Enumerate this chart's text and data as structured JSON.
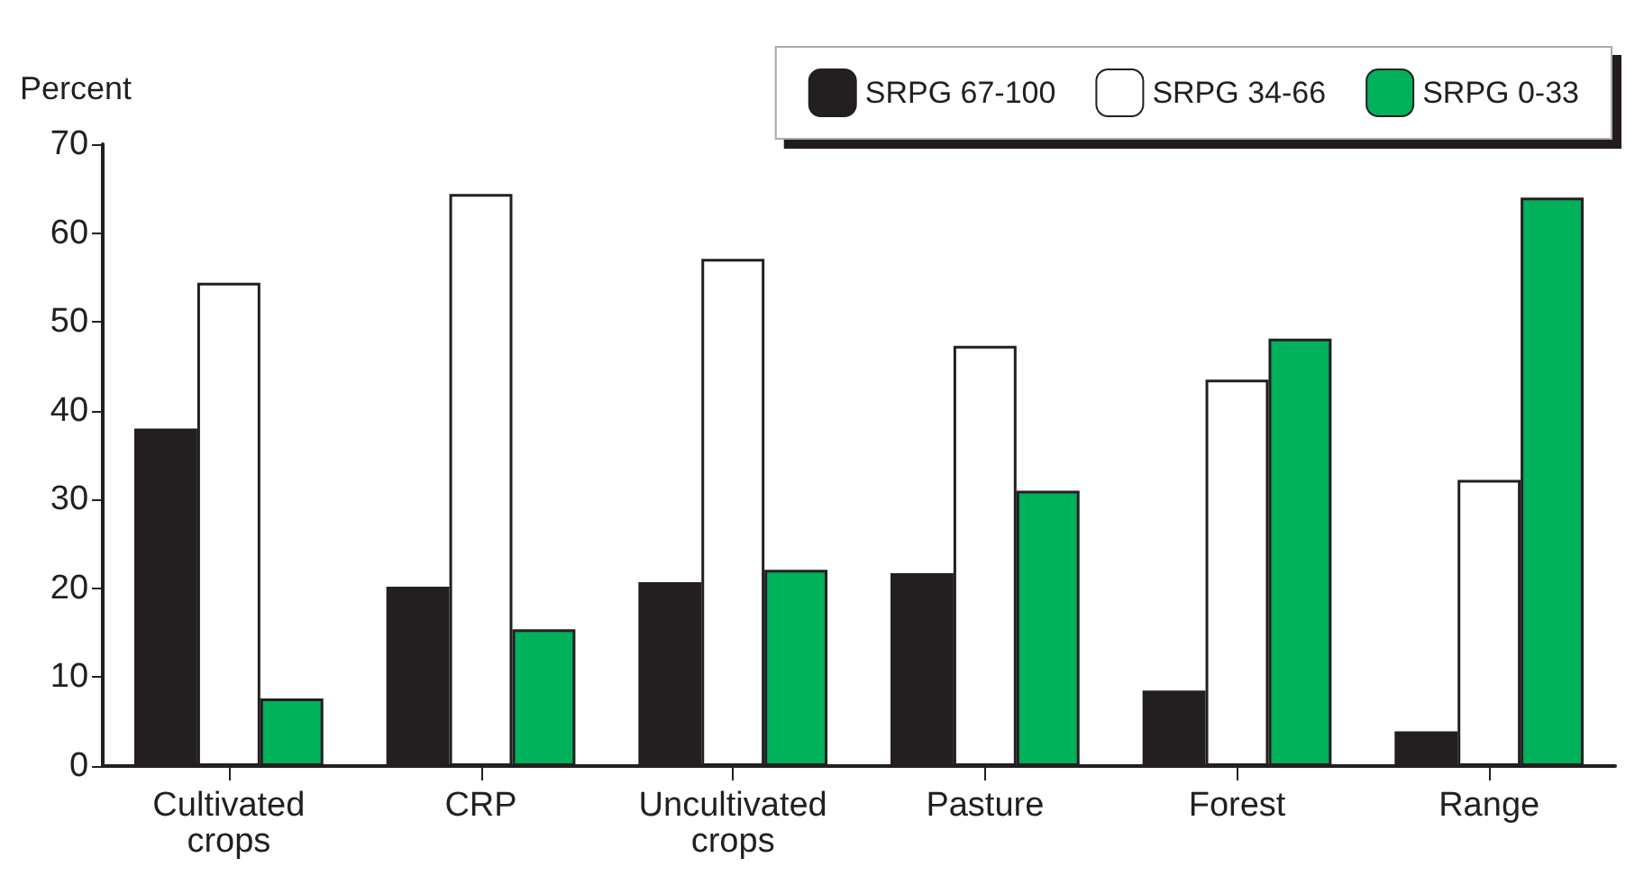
{
  "chart_data": {
    "type": "bar",
    "ylabel": "Percent",
    "categories": [
      "Cultivated\ncrops",
      "CRP",
      "Uncultivated\ncrops",
      "Pasture",
      "Forest",
      "Range"
    ],
    "series": [
      {
        "name": "SRPG 67-100",
        "color": "#231f20",
        "values": [
          38.0,
          20.2,
          20.7,
          21.7,
          8.5,
          3.9
        ]
      },
      {
        "name": "SRPG 34-66",
        "color": "#ffffff",
        "values": [
          54.4,
          64.4,
          57.1,
          47.3,
          43.5,
          32.2
        ]
      },
      {
        "name": "SRPG 0-33",
        "color": "#00b05a",
        "values": [
          7.6,
          15.4,
          22.1,
          31.0,
          48.1,
          64.0
        ]
      }
    ],
    "ylim": [
      0,
      70
    ],
    "yticks": [
      0,
      10,
      20,
      30,
      40,
      50,
      60,
      70
    ],
    "grid": false,
    "legend": "top right"
  }
}
